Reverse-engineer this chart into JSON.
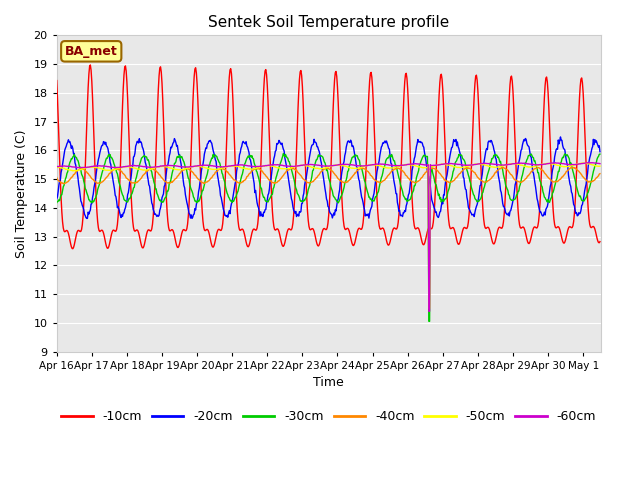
{
  "title": "Sentek Soil Temperature profile",
  "xlabel": "Time",
  "ylabel": "Soil Temperature (C)",
  "ylim": [
    9.0,
    20.0
  ],
  "yticks": [
    9.0,
    10.0,
    11.0,
    12.0,
    13.0,
    14.0,
    15.0,
    16.0,
    17.0,
    18.0,
    19.0,
    20.0
  ],
  "xtick_labels": [
    "Apr 16",
    "Apr 17",
    "Apr 18",
    "Apr 19",
    "Apr 20",
    "Apr 21",
    "Apr 22",
    "Apr 23",
    "Apr 24",
    "Apr 25",
    "Apr 26",
    "Apr 27",
    "Apr 28",
    "Apr 29",
    "Apr 30",
    "May 1"
  ],
  "legend_label": "BA_met",
  "colors": {
    "-10cm": "#ff0000",
    "-20cm": "#0000ff",
    "-30cm": "#00cc00",
    "-40cm": "#ff8800",
    "-50cm": "#ffff00",
    "-60cm": "#cc00cc"
  },
  "fig_bg_color": "#ffffff",
  "plot_bg_color": "#e8e8e8",
  "grid_color": "#ffffff",
  "annotation_bg": "#ffff99",
  "annotation_border": "#996600",
  "annotation_text_color": "#880000"
}
